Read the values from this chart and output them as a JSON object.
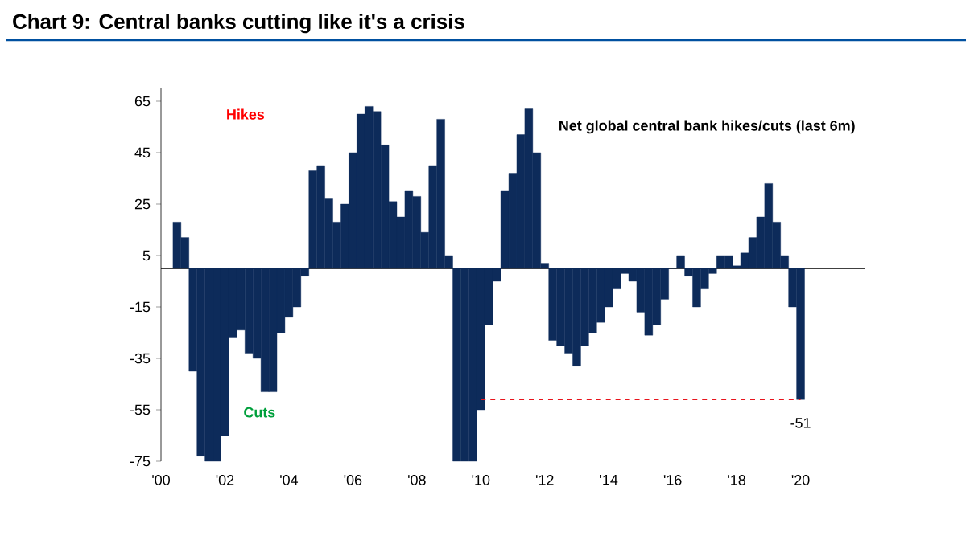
{
  "chart_data": {
    "type": "bar",
    "title": "Chart 9: Central banks cutting like it's a crisis",
    "annotations": [
      "Net global central bank hikes/cuts (last 6m)",
      "Hikes",
      "Cuts",
      {
        "text": "-51",
        "x": 2020,
        "y": -51
      }
    ],
    "xlim": [
      2000,
      2022
    ],
    "ylim": [
      -75,
      70
    ],
    "xticks": [
      {
        "value": 2000,
        "label": "'00"
      },
      {
        "value": 2002,
        "label": "'02"
      },
      {
        "value": 2004,
        "label": "'04"
      },
      {
        "value": 2006,
        "label": "'06"
      },
      {
        "value": 2008,
        "label": "'08"
      },
      {
        "value": 2010,
        "label": "'10"
      },
      {
        "value": 2012,
        "label": "'12"
      },
      {
        "value": 2014,
        "label": "'14"
      },
      {
        "value": 2016,
        "label": "'16"
      },
      {
        "value": 2018,
        "label": "'18"
      },
      {
        "value": 2020,
        "label": "'20"
      }
    ],
    "yticks": [
      65,
      45,
      25,
      5,
      -15,
      -35,
      -55,
      -75
    ],
    "grid": false,
    "series": [
      {
        "color": "#0d2b5a",
        "x": [
          2000.5,
          2000.75,
          2001.0,
          2001.25,
          2001.5,
          2001.75,
          2002.0,
          2002.25,
          2002.5,
          2002.75,
          2003.0,
          2003.25,
          2003.5,
          2003.75,
          2004.0,
          2004.25,
          2004.5,
          2004.75,
          2005.0,
          2005.25,
          2005.5,
          2005.75,
          2006.0,
          2006.25,
          2006.5,
          2006.75,
          2007.0,
          2007.25,
          2007.5,
          2007.75,
          2008.0,
          2008.25,
          2008.5,
          2008.75,
          2009.0,
          2009.25,
          2009.5,
          2009.75,
          2010.0,
          2010.25,
          2010.5,
          2010.75,
          2011.0,
          2011.25,
          2011.5,
          2011.75,
          2012.0,
          2012.25,
          2012.5,
          2012.75,
          2013.0,
          2013.25,
          2013.5,
          2013.75,
          2014.0,
          2014.25,
          2014.5,
          2014.75,
          2015.0,
          2015.25,
          2015.5,
          2015.75,
          2016.0,
          2016.25,
          2016.5,
          2016.75,
          2017.0,
          2017.25,
          2017.5,
          2017.75,
          2018.0,
          2018.25,
          2018.5,
          2018.75,
          2019.0,
          2019.25,
          2019.5,
          2019.75,
          2020.0
        ],
        "values": [
          18,
          12,
          -40,
          -73,
          -75,
          -75,
          -65,
          -27,
          -24,
          -33,
          -35,
          -48,
          -48,
          -25,
          -19,
          -15,
          -3,
          38,
          40,
          27,
          18,
          25,
          45,
          60,
          63,
          61,
          48,
          26,
          20,
          30,
          28,
          14,
          40,
          58,
          5,
          -75,
          -75,
          -75,
          -55,
          -22,
          -5,
          30,
          37,
          52,
          62,
          45,
          2,
          -28,
          -30,
          -33,
          -38,
          -30,
          -25,
          -21,
          -15,
          -8,
          -2,
          -5,
          -17,
          -26,
          -22,
          -12,
          0,
          5,
          -3,
          -15,
          -8,
          -2,
          5,
          5,
          1,
          6,
          12,
          20,
          33,
          18,
          5,
          -15,
          -51
        ]
      },
      {
        "type": "line",
        "color": "#e8141c",
        "line_style": "dashed",
        "marker": "none",
        "x": [
          2010,
          2020
        ],
        "values": [
          -51,
          -51
        ]
      }
    ]
  }
}
